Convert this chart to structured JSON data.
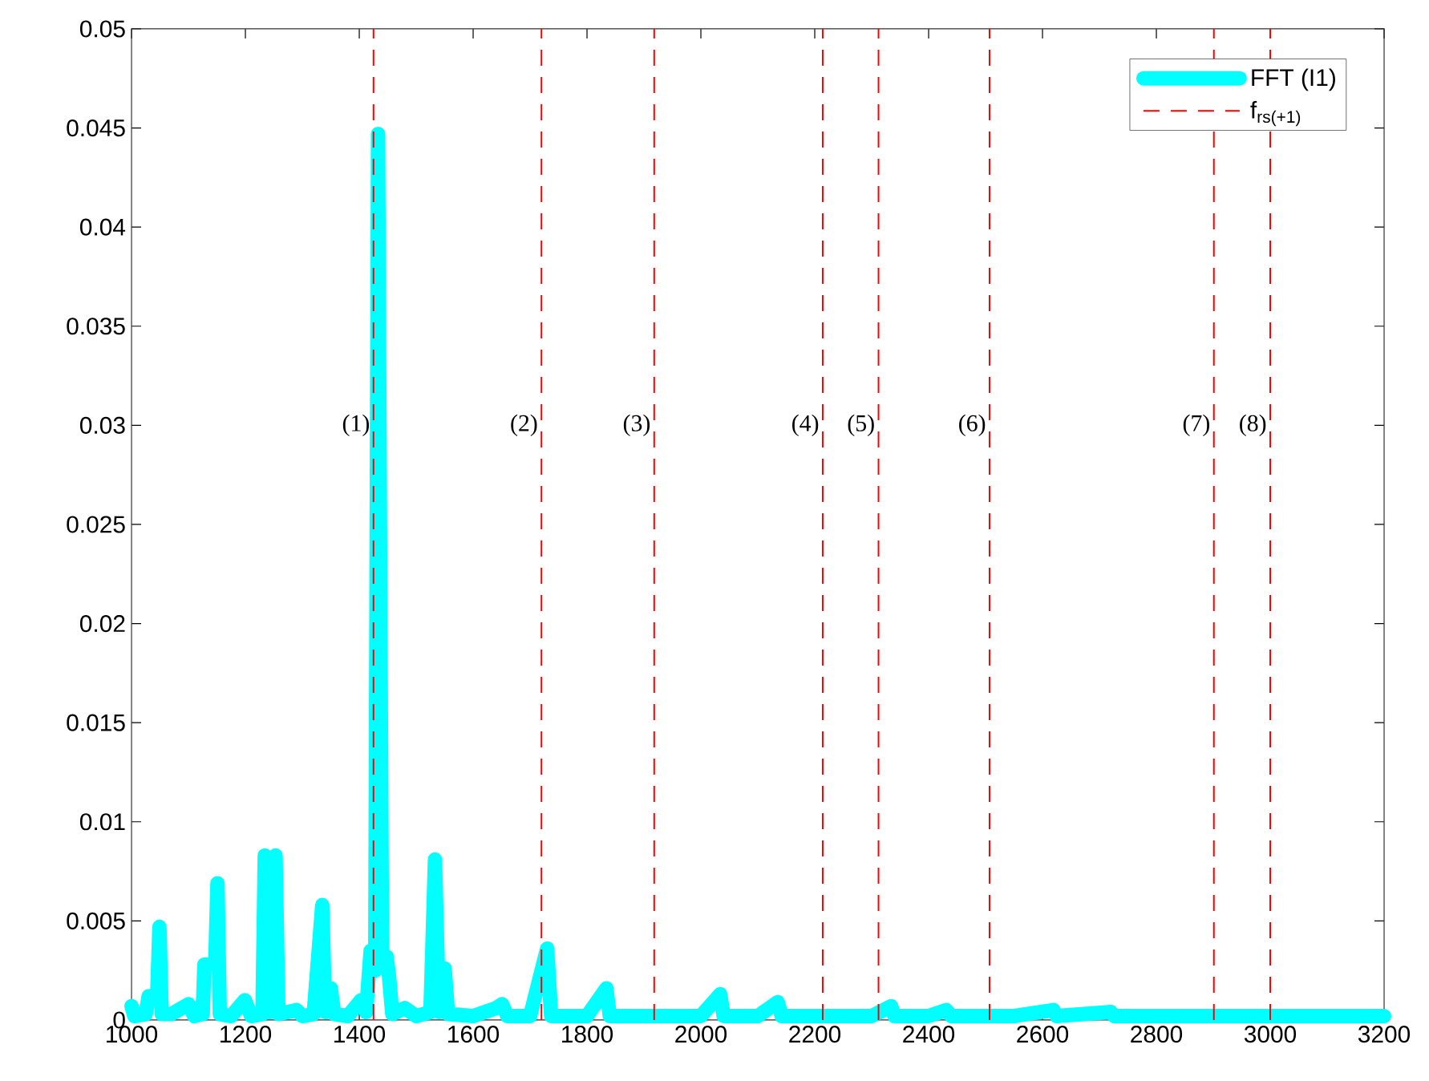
{
  "chart_data": {
    "type": "line",
    "xlim": [
      1000,
      3200
    ],
    "ylim": [
      0,
      0.05
    ],
    "xticks": [
      1000,
      1200,
      1400,
      1600,
      1800,
      2000,
      2200,
      2400,
      2600,
      2800,
      3000,
      3200
    ],
    "yticks": [
      0,
      0.005,
      0.01,
      0.015,
      0.02,
      0.025,
      0.03,
      0.035,
      0.04,
      0.045,
      0.05
    ],
    "grid": false,
    "legend": "top right",
    "marker": "none",
    "line_style": "solid",
    "series": [
      {
        "name": "FFT (I1)",
        "color": "#00ffff",
        "x": [
          1000,
          1005,
          1025,
          1030,
          1045,
          1049,
          1053,
          1070,
          1100,
          1110,
          1125,
          1128,
          1147,
          1151,
          1155,
          1175,
          1199,
          1210,
          1230,
          1234,
          1243,
          1253,
          1258,
          1290,
          1300,
          1320,
          1335,
          1340,
          1350,
          1356,
          1380,
          1403,
          1412,
          1420,
          1428,
          1433,
          1440,
          1448,
          1452,
          1458,
          1480,
          1500,
          1525,
          1533,
          1540,
          1550,
          1556,
          1600,
          1640,
          1651,
          1660,
          1700,
          1730,
          1737,
          1800,
          1834,
          1840,
          1900,
          2000,
          2034,
          2040,
          2100,
          2135,
          2142,
          2200,
          2300,
          2334,
          2340,
          2400,
          2431,
          2440,
          2550,
          2619,
          2625,
          2720,
          2726,
          2900,
          3200
        ],
        "values": [
          0.0007,
          0.0002,
          0.0003,
          0.0012,
          0.0012,
          0.0047,
          0.0003,
          0.0003,
          0.0008,
          0.0002,
          0.0003,
          0.0028,
          0.0028,
          0.0069,
          0.0003,
          0.0002,
          0.001,
          0.0002,
          0.0003,
          0.0083,
          0.0004,
          0.0083,
          0.0003,
          0.0005,
          0.0002,
          0.0003,
          0.0058,
          0.0004,
          0.0016,
          0.0003,
          0.0002,
          0.001,
          0.0004,
          0.0035,
          0.0025,
          0.0447,
          0.0032,
          0.0032,
          0.0023,
          0.0003,
          0.0006,
          0.0002,
          0.0004,
          0.0081,
          0.0004,
          0.0026,
          0.0003,
          0.0002,
          0.0006,
          0.0008,
          0.0002,
          0.0002,
          0.0036,
          0.0002,
          0.0002,
          0.0016,
          0.0002,
          0.0002,
          0.0002,
          0.0013,
          0.0002,
          0.0002,
          0.0009,
          0.0002,
          0.0002,
          0.0002,
          0.0007,
          0.0002,
          0.0002,
          0.0005,
          0.0002,
          0.0002,
          0.0005,
          0.0002,
          0.0004,
          0.0002,
          0.0002,
          0.0002
        ]
      }
    ],
    "ref_lines": [
      {
        "axis": "x",
        "value": 1425,
        "color": "#ff0000",
        "line_style": "dashed"
      },
      {
        "axis": "x",
        "value": 1720,
        "color": "#ff0000",
        "line_style": "dashed"
      },
      {
        "axis": "x",
        "value": 1918,
        "color": "#ff0000",
        "line_style": "dashed"
      },
      {
        "axis": "x",
        "value": 2214,
        "color": "#ff0000",
        "line_style": "dashed"
      },
      {
        "axis": "x",
        "value": 2312,
        "color": "#ff0000",
        "line_style": "dashed"
      },
      {
        "axis": "x",
        "value": 2507,
        "color": "#ff0000",
        "line_style": "dashed"
      },
      {
        "axis": "x",
        "value": 2901,
        "color": "#ff0000",
        "line_style": "dashed"
      },
      {
        "axis": "x",
        "value": 3000,
        "color": "#ff0000",
        "line_style": "dashed"
      }
    ],
    "annotations": [
      "f$_{rs(+1)}$",
      {
        "text": "(1)",
        "x": 1425,
        "y": 0.03
      },
      {
        "text": "(2)",
        "x": 1720,
        "y": 0.03
      },
      {
        "text": "(3)",
        "x": 1918,
        "y": 0.03
      },
      {
        "text": "(4)",
        "x": 2214,
        "y": 0.03
      },
      {
        "text": "(5)",
        "x": 2312,
        "y": 0.03
      },
      {
        "text": "(6)",
        "x": 2507,
        "y": 0.03
      },
      {
        "text": "(7)",
        "x": 2901,
        "y": 0.03
      },
      {
        "text": "(8)",
        "x": 3000,
        "y": 0.03
      }
    ]
  }
}
